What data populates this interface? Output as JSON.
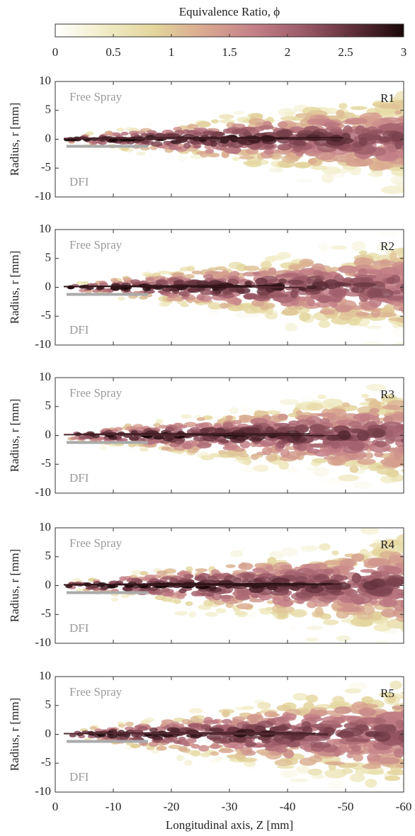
{
  "colorbar": {
    "label": "Equivalence Ratio, ϕ",
    "lim": [
      0,
      3
    ],
    "ticks": [
      0,
      0.5,
      1,
      1.5,
      2,
      2.5,
      3
    ],
    "colors": [
      "#ffffff",
      "#f1ecc6",
      "#e3d59c",
      "#d9a890",
      "#c48088",
      "#9a5a66",
      "#5e2e38",
      "#1a0808"
    ]
  },
  "chart_data": [
    {
      "type": "heatmap",
      "panel_label": "R1",
      "annotations": [
        "Free Spray",
        "DFI"
      ],
      "ylabel": "Radius, r [mm]",
      "ylim": [
        -10,
        10
      ],
      "yticks": [
        -10,
        -5,
        0,
        5,
        10
      ]
    },
    {
      "type": "heatmap",
      "panel_label": "R2",
      "annotations": [
        "Free Spray",
        "DFI"
      ],
      "ylabel": "Radius, r [mm]",
      "ylim": [
        -10,
        10
      ],
      "yticks": [
        -10,
        -5,
        0,
        5,
        10
      ]
    },
    {
      "type": "heatmap",
      "panel_label": "R3",
      "annotations": [
        "Free Spray",
        "DFI"
      ],
      "ylabel": "Radius, r [mm]",
      "ylim": [
        -10,
        10
      ],
      "yticks": [
        -10,
        -5,
        0,
        5,
        10
      ]
    },
    {
      "type": "heatmap",
      "panel_label": "R4",
      "annotations": [
        "Free Spray",
        "DFI"
      ],
      "ylabel": "Radius, r [mm]",
      "ylim": [
        -10,
        10
      ],
      "yticks": [
        -10,
        -5,
        0,
        5,
        10
      ]
    },
    {
      "type": "heatmap",
      "panel_label": "R5",
      "annotations": [
        "Free Spray",
        "DFI"
      ],
      "ylabel": "Radius, r [mm]",
      "ylim": [
        -10,
        10
      ],
      "yticks": [
        -10,
        -5,
        0,
        5,
        10
      ],
      "xlabel": "Longitudinal axis, Z [mm]",
      "xlim": [
        0,
        -60
      ],
      "xticks": [
        0,
        -10,
        -20,
        -30,
        -40,
        -50,
        -60
      ]
    }
  ]
}
